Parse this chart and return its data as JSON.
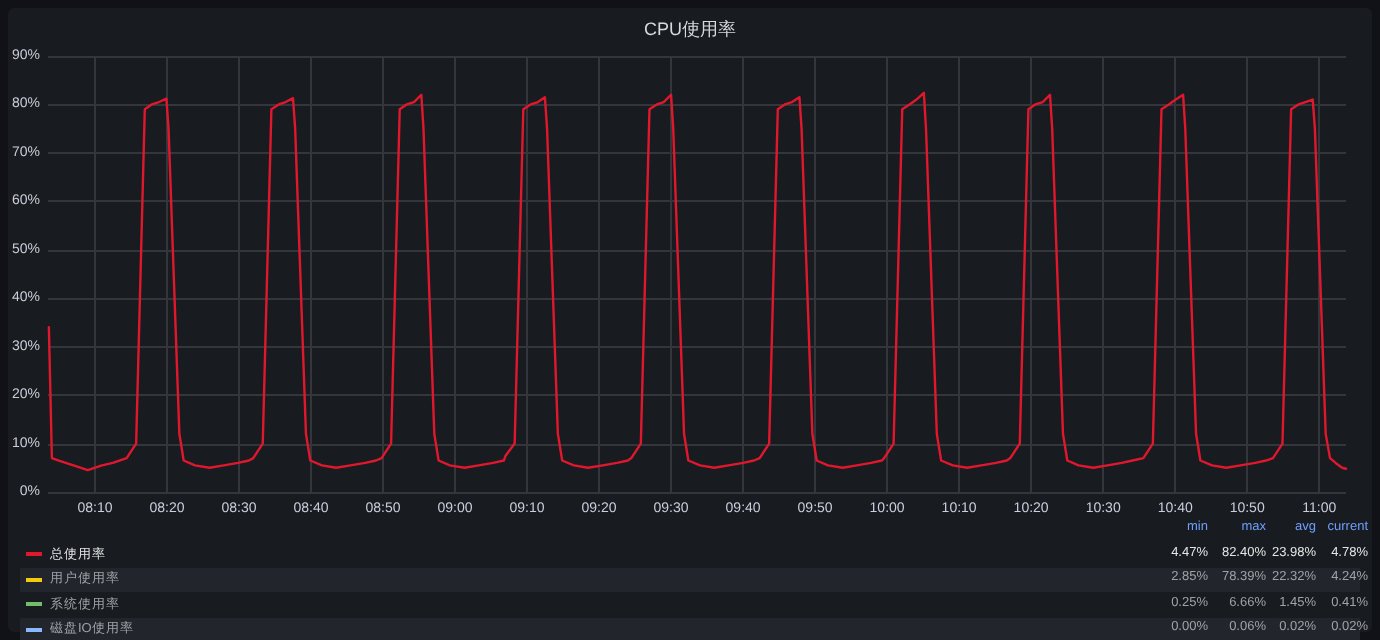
{
  "chart_data": {
    "type": "line",
    "title": "CPU使用率",
    "x": [
      8.06,
      8.067,
      8.083,
      8.117,
      8.15,
      8.183,
      8.208,
      8.24,
      8.262,
      8.282,
      8.298,
      8.315,
      8.332,
      8.337,
      8.362,
      8.372,
      8.398,
      8.432,
      8.465,
      8.498,
      8.523,
      8.533,
      8.555,
      8.575,
      8.592,
      8.608,
      8.625,
      8.63,
      8.655,
      8.665,
      8.692,
      8.725,
      8.758,
      8.792,
      8.817,
      8.83,
      8.852,
      8.872,
      8.888,
      8.905,
      8.922,
      8.927,
      8.952,
      8.962,
      8.988,
      9.022,
      9.055,
      9.088,
      9.113,
      9.117,
      9.138,
      9.158,
      9.175,
      9.192,
      9.208,
      9.213,
      9.238,
      9.248,
      9.275,
      9.308,
      9.342,
      9.375,
      9.4,
      9.408,
      9.43,
      9.45,
      9.467,
      9.483,
      9.5,
      9.505,
      9.53,
      9.54,
      9.567,
      9.6,
      9.633,
      9.667,
      9.692,
      9.705,
      9.727,
      9.747,
      9.763,
      9.78,
      9.797,
      9.802,
      9.827,
      9.837,
      9.863,
      9.897,
      9.93,
      9.963,
      9.988,
      9.993,
      10.015,
      10.035,
      10.052,
      10.068,
      10.085,
      10.09,
      10.115,
      10.125,
      10.152,
      10.185,
      10.218,
      10.252,
      10.277,
      10.285,
      10.307,
      10.327,
      10.343,
      10.36,
      10.377,
      10.382,
      10.407,
      10.417,
      10.443,
      10.477,
      10.51,
      10.543,
      10.568,
      10.593,
      10.615,
      10.635,
      10.652,
      10.668,
      10.685,
      10.69,
      10.715,
      10.725,
      10.752,
      10.785,
      10.818,
      10.852,
      10.877,
      10.893,
      10.915,
      10.935,
      10.952,
      10.968,
      10.985,
      10.99,
      11.015,
      11.025,
      11.038,
      11.053,
      11.062
    ],
    "series": [
      {
        "name": "总使用率",
        "color": "#e0182d",
        "values": [
          34,
          7,
          6.5,
          5.5,
          4.5,
          5.5,
          6,
          7,
          10,
          79,
          80,
          80.5,
          81.2,
          75,
          12,
          6.5,
          5.5,
          5,
          5.5,
          6,
          6.5,
          7,
          10,
          79,
          80,
          80.5,
          81.3,
          75,
          12,
          6.5,
          5.5,
          5,
          5.5,
          6,
          6.5,
          7,
          10,
          79,
          80,
          80.5,
          82,
          75,
          12,
          6.5,
          5.5,
          5,
          5.5,
          6,
          6.5,
          7.5,
          10,
          79,
          80,
          80.5,
          81.5,
          75,
          12,
          6.5,
          5.5,
          5,
          5.5,
          6,
          6.5,
          7,
          10,
          79,
          80,
          80.5,
          82,
          75,
          12,
          6.5,
          5.5,
          5,
          5.5,
          6,
          6.5,
          7,
          10,
          79,
          80,
          80.5,
          81.5,
          75,
          12,
          6.5,
          5.5,
          5,
          5.5,
          6,
          6.5,
          7,
          10,
          79,
          80,
          81,
          82.4,
          75,
          12,
          6.5,
          5.5,
          5,
          5.5,
          6,
          6.5,
          7,
          10,
          79,
          80,
          80.5,
          82,
          75,
          12,
          6.5,
          5.5,
          5,
          5.5,
          6,
          6.5,
          7,
          10,
          79,
          80,
          81,
          82,
          75,
          12,
          6.5,
          5.5,
          5,
          5.5,
          6,
          6.5,
          7,
          10,
          79,
          80,
          80.5,
          81,
          75,
          12,
          7,
          6,
          5,
          4.8
        ]
      },
      {
        "name": "用户使用率",
        "color": "#f2cc0c",
        "values": [
          null,
          null,
          null,
          null,
          null,
          null,
          null,
          null,
          null,
          null,
          null,
          null,
          null,
          null,
          null,
          null,
          null,
          null,
          null,
          null,
          null,
          null,
          null,
          null,
          null,
          null,
          null,
          null,
          null,
          null,
          null,
          null,
          null,
          null,
          null,
          null,
          null,
          null,
          null,
          null,
          null,
          null,
          null,
          null,
          null,
          null,
          null,
          null,
          null,
          null,
          null,
          null,
          null,
          null,
          null,
          null,
          null,
          null,
          null,
          null,
          null,
          null,
          null,
          null,
          null,
          null,
          null,
          null,
          null,
          null,
          null,
          null,
          null,
          null,
          null,
          null,
          null,
          null,
          null,
          null,
          null,
          null,
          null,
          null,
          null,
          null,
          null,
          null,
          null,
          null,
          null,
          null,
          null,
          null,
          null,
          null,
          null,
          null,
          null,
          null,
          null,
          null,
          null,
          null,
          null,
          null,
          null,
          null,
          null,
          null,
          null,
          null,
          null,
          null,
          null,
          null,
          null,
          null,
          null,
          null,
          null,
          null,
          null,
          null,
          null,
          null,
          null,
          null,
          null,
          null,
          null,
          null,
          null,
          null,
          null,
          null,
          null,
          null,
          null,
          null,
          null,
          null,
          null,
          null,
          null
        ]
      },
      {
        "name": "系统使用率",
        "color": "#73bf69",
        "values": [
          null,
          null,
          null,
          null,
          null,
          null,
          null,
          null,
          null,
          null,
          null,
          null,
          null,
          null,
          null,
          null,
          null,
          null,
          null,
          null,
          null,
          null,
          null,
          null,
          null,
          null,
          null,
          null,
          null,
          null,
          null,
          null,
          null,
          null,
          null,
          null,
          null,
          null,
          null,
          null,
          null,
          null,
          null,
          null,
          null,
          null,
          null,
          null,
          null,
          null,
          null,
          null,
          null,
          null,
          null,
          null,
          null,
          null,
          null,
          null,
          null,
          null,
          null,
          null,
          null,
          null,
          null,
          null,
          null,
          null,
          null,
          null,
          null,
          null,
          null,
          null,
          null,
          null,
          null,
          null,
          null,
          null,
          null,
          null,
          null,
          null,
          null,
          null,
          null,
          null,
          null,
          null,
          null,
          null,
          null,
          null,
          null,
          null,
          null,
          null,
          null,
          null,
          null,
          null,
          null,
          null,
          null,
          null,
          null,
          null,
          null,
          null,
          null,
          null,
          null,
          null,
          null,
          null,
          null,
          null,
          null,
          null,
          null,
          null,
          null,
          null,
          null,
          null,
          null,
          null,
          null,
          null,
          null,
          null,
          null,
          null,
          null,
          null,
          null,
          null,
          null,
          null,
          null,
          null,
          null
        ]
      },
      {
        "name": "磁盘IO使用率",
        "color": "#8ab8ff",
        "values": [
          null,
          null,
          null,
          null,
          null,
          null,
          null,
          null,
          null,
          null,
          null,
          null,
          null,
          null,
          null,
          null,
          null,
          null,
          null,
          null,
          null,
          null,
          null,
          null,
          null,
          null,
          null,
          null,
          null,
          null,
          null,
          null,
          null,
          null,
          null,
          null,
          null,
          null,
          null,
          null,
          null,
          null,
          null,
          null,
          null,
          null,
          null,
          null,
          null,
          null,
          null,
          null,
          null,
          null,
          null,
          null,
          null,
          null,
          null,
          null,
          null,
          null,
          null,
          null,
          null,
          null,
          null,
          null,
          null,
          null,
          null,
          null,
          null,
          null,
          null,
          null,
          null,
          null,
          null,
          null,
          null,
          null,
          null,
          null,
          null,
          null,
          null,
          null,
          null,
          null,
          null,
          null,
          null,
          null,
          null,
          null,
          null,
          null,
          null,
          null,
          null,
          null,
          null,
          null,
          null,
          null,
          null,
          null,
          null,
          null,
          null,
          null,
          null,
          null,
          null,
          null,
          null,
          null,
          null,
          null,
          null,
          null,
          null,
          null,
          null,
          null,
          null,
          null,
          null,
          null,
          null,
          null,
          null,
          null,
          null,
          null,
          null,
          null,
          null,
          null,
          null,
          null,
          null,
          null,
          null
        ]
      }
    ],
    "xlim": [
      8.058,
      11.062
    ],
    "xticks": [
      {
        "value": 8.1667,
        "label": "08:10"
      },
      {
        "value": 8.3333,
        "label": "08:20"
      },
      {
        "value": 8.5,
        "label": "08:30"
      },
      {
        "value": 8.6667,
        "label": "08:40"
      },
      {
        "value": 8.8333,
        "label": "08:50"
      },
      {
        "value": 9,
        "label": "09:00"
      },
      {
        "value": 9.1667,
        "label": "09:10"
      },
      {
        "value": 9.3333,
        "label": "09:20"
      },
      {
        "value": 9.5,
        "label": "09:30"
      },
      {
        "value": 9.6667,
        "label": "09:40"
      },
      {
        "value": 9.8333,
        "label": "09:50"
      },
      {
        "value": 10,
        "label": "10:00"
      },
      {
        "value": 10.1667,
        "label": "10:10"
      },
      {
        "value": 10.3333,
        "label": "10:20"
      },
      {
        "value": 10.5,
        "label": "10:30"
      },
      {
        "value": 10.6667,
        "label": "10:40"
      },
      {
        "value": 10.8333,
        "label": "10:50"
      },
      {
        "value": 11,
        "label": "11:00"
      }
    ],
    "ylim": [
      0,
      90
    ],
    "yticks": [
      {
        "value": 0,
        "label": "0%"
      },
      {
        "value": 10,
        "label": "10%"
      },
      {
        "value": 20,
        "label": "20%"
      },
      {
        "value": 30,
        "label": "30%"
      },
      {
        "value": 40,
        "label": "40%"
      },
      {
        "value": 50,
        "label": "50%"
      },
      {
        "value": 60,
        "label": "60%"
      },
      {
        "value": 70,
        "label": "70%"
      },
      {
        "value": 80,
        "label": "80%"
      },
      {
        "value": 90,
        "label": "90%"
      }
    ],
    "grid": true,
    "legend": "bottom",
    "marker": "none",
    "line_style": "solid",
    "annotations": [
      "min",
      "max",
      "avg",
      "current",
      "4.47%",
      "82.40%",
      "23.98%",
      "4.78%",
      "2.85%",
      "78.39%",
      "22.32%",
      "4.24%",
      "0.25%",
      "6.66%",
      "1.45%",
      "0.41%",
      "0.00%",
      "0.06%",
      "0.02%",
      "0.02%"
    ]
  }
}
